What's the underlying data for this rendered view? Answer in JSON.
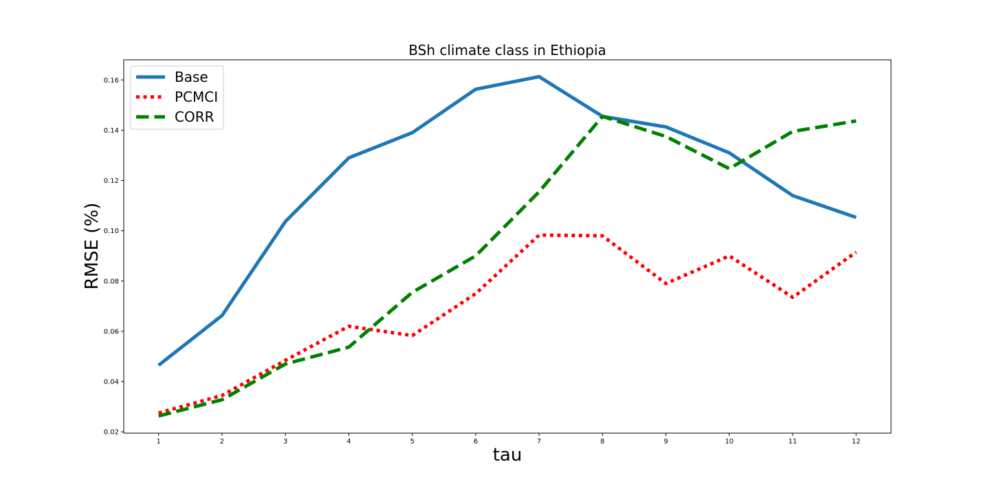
{
  "chart_data": {
    "type": "line",
    "title": "BSh climate class in Ethiopia",
    "xlabel": "tau",
    "ylabel": "RMSE (%)",
    "x": [
      1,
      2,
      3,
      4,
      5,
      6,
      7,
      8,
      9,
      10,
      11,
      12
    ],
    "xlim": [
      0.45,
      12.55
    ],
    "ylim": [
      0.0195,
      0.168
    ],
    "xticks": [
      "1",
      "2",
      "3",
      "4",
      "5",
      "6",
      "7",
      "8",
      "9",
      "10",
      "11",
      "12"
    ],
    "yticks": [
      "0.02",
      "0.04",
      "0.06",
      "0.08",
      "0.10",
      "0.12",
      "0.14",
      "0.16"
    ],
    "legend_position": "upper-left",
    "series": [
      {
        "name": "Base",
        "color": "#1f77b4",
        "style": "solid",
        "values": [
          0.0465,
          0.0663,
          0.1037,
          0.129,
          0.139,
          0.1563,
          0.1613,
          0.1455,
          0.1413,
          0.131,
          0.114,
          0.1053
        ]
      },
      {
        "name": "PCMCI",
        "color": "#ff0000",
        "style": "dotted",
        "values": [
          0.0275,
          0.0345,
          0.0485,
          0.062,
          0.0583,
          0.075,
          0.0983,
          0.098,
          0.079,
          0.09,
          0.0735,
          0.0915
        ]
      },
      {
        "name": "CORR",
        "color": "#008000",
        "style": "dashed",
        "values": [
          0.0263,
          0.0328,
          0.047,
          0.0537,
          0.0755,
          0.09,
          0.1155,
          0.1455,
          0.1375,
          0.1247,
          0.1395,
          0.1437
        ]
      }
    ]
  }
}
